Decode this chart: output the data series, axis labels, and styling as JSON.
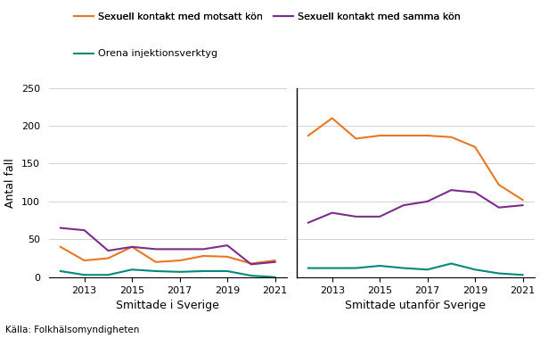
{
  "years": [
    2012,
    2013,
    2014,
    2015,
    2016,
    2017,
    2018,
    2019,
    2020,
    2021
  ],
  "sverige": {
    "motsatt": [
      40,
      22,
      25,
      40,
      20,
      22,
      28,
      27,
      18,
      22
    ],
    "samma": [
      65,
      62,
      35,
      40,
      37,
      37,
      37,
      42,
      17,
      20
    ],
    "orena": [
      8,
      3,
      3,
      10,
      8,
      7,
      8,
      8,
      2,
      0
    ]
  },
  "utanfor": {
    "motsatt": [
      187,
      210,
      183,
      187,
      187,
      187,
      185,
      172,
      122,
      102
    ],
    "samma": [
      72,
      85,
      80,
      80,
      95,
      100,
      115,
      112,
      92,
      95
    ],
    "orena": [
      12,
      12,
      12,
      15,
      12,
      10,
      18,
      10,
      5,
      3
    ]
  },
  "color_motsatt": "#E87722",
  "color_samma": "#7B2D8B",
  "color_orena": "#00897B",
  "label_motsatt": "Sexuell kontakt med motsatt kön",
  "label_samma": "Sexuell kontakt med samma kön",
  "label_orena": "Orena injektionsverktyg",
  "ylabel": "Antal fall",
  "xlabel_left": "Smittade i Sverige",
  "xlabel_right": "Smittade utanför Sverige",
  "source": "Källa: Folkhälsomyndigheten",
  "ylim": [
    0,
    250
  ],
  "yticks": [
    0,
    50,
    100,
    150,
    200,
    250
  ]
}
